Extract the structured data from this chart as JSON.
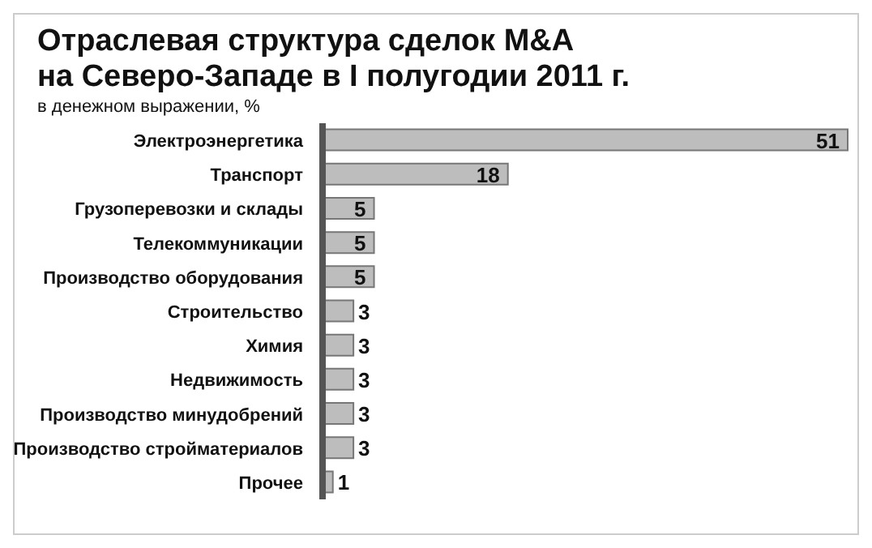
{
  "chart_data": {
    "type": "bar",
    "orientation": "horizontal",
    "title": "Отраслевая структура сделок M&A\nна Северо-Западе в I полугодии 2011 г.",
    "subtitle": "в денежном выражении, %",
    "categories": [
      "Электроэнергетика",
      "Транспорт",
      "Грузоперевозки и склады",
      "Телекоммуникации",
      "Производство оборудования",
      "Строительство",
      "Химия",
      "Недвижимость",
      "Производство минудобрений",
      "Производство стройматериалов",
      "Прочее"
    ],
    "values": [
      51,
      18,
      5,
      5,
      5,
      3,
      3,
      3,
      3,
      3,
      1
    ],
    "color": "#bdbdbd",
    "data_labels": true
  }
}
